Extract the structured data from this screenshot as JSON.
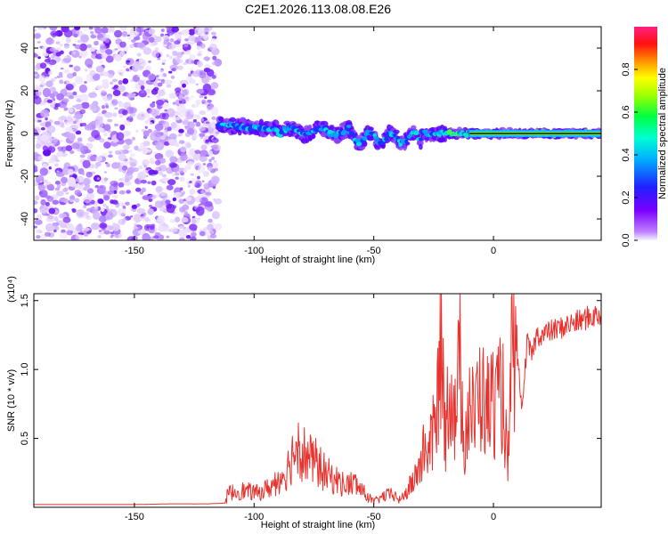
{
  "title": "C2E1.2026.113.08.08.E26",
  "chart_data": [
    {
      "type": "heatmap",
      "xlabel": "Height of straight line (km)",
      "ylabel": "Frequency (Hz)",
      "xlim": [
        -192,
        45
      ],
      "ylim": [
        -50,
        50
      ],
      "xticks": [
        -150,
        -100,
        -50,
        0
      ],
      "xtick_labels": [
        "-150",
        "-100",
        "-50",
        "0"
      ],
      "yticks": [
        -40,
        -20,
        0,
        20,
        40
      ],
      "ytick_labels": [
        "-40",
        "-20",
        "0",
        "20",
        "40"
      ],
      "noise_region_x": [
        -192,
        -115
      ],
      "signal_region_x": [
        -115,
        45
      ],
      "colorbar": {
        "label": "Normalized spectral amplitude",
        "range": [
          0,
          1
        ],
        "ticks": [
          0.0,
          0.2,
          0.4,
          0.6,
          0.8
        ],
        "tick_labels": [
          "0.0",
          "0.2",
          "0.4",
          "0.6",
          "0.8"
        ]
      }
    },
    {
      "type": "line",
      "xlabel": "Height of straight line (km)",
      "ylabel": "SNR (10 * v/v)",
      "y_multiplier_label": "(x10⁴)",
      "xlim": [
        -192,
        45
      ],
      "ylim": [
        0,
        1.55
      ],
      "xticks": [
        -150,
        -100,
        -50,
        0
      ],
      "xtick_labels": [
        "-150",
        "-100",
        "-50",
        "0"
      ],
      "yticks": [
        0.5,
        1.0,
        1.5
      ],
      "ytick_labels": [
        "0.5",
        "1.0",
        "1.5"
      ],
      "series": [
        {
          "name": "SNR",
          "color": "#e8322e",
          "x": [
            -192,
            -180,
            -165,
            -150,
            -135,
            -120,
            -112,
            -111,
            -105,
            -98,
            -92,
            -86,
            -82,
            -78,
            -74,
            -70,
            -66,
            -62,
            -58,
            -54,
            -50,
            -46,
            -42,
            -39,
            -36,
            -33,
            -30,
            -28,
            -26,
            -24,
            -22,
            -20,
            -18,
            -16,
            -14,
            -12,
            -10,
            -8,
            -6,
            -4,
            -2,
            0,
            2,
            4,
            6,
            8,
            10,
            12,
            14,
            16,
            18,
            20,
            24,
            28,
            32,
            36,
            40,
            45
          ],
          "values": [
            0.02,
            0.02,
            0.02,
            0.02,
            0.025,
            0.025,
            0.03,
            0.13,
            0.15,
            0.13,
            0.2,
            0.35,
            0.6,
            0.45,
            0.4,
            0.3,
            0.25,
            0.2,
            0.22,
            0.13,
            0.05,
            0.1,
            0.12,
            0.06,
            0.15,
            0.25,
            0.45,
            0.55,
            0.6,
            0.75,
            1.55,
            0.7,
            1.2,
            0.8,
            1.3,
            0.6,
            1.0,
            0.75,
            1.1,
            0.95,
            0.9,
            1.0,
            0.95,
            1.05,
            0.3,
            1.55,
            1.1,
            0.7,
            1.2,
            1.1,
            1.25,
            1.25,
            1.28,
            1.3,
            1.33,
            1.35,
            1.38,
            1.4
          ]
        }
      ]
    }
  ]
}
